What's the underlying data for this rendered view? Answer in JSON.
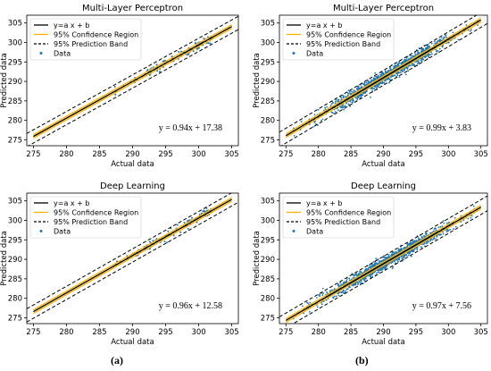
{
  "chart_data": [
    {
      "type": "scatter",
      "title": "Multi-Layer Perceptron",
      "xlabel": "Actual data",
      "ylabel": "Predicted data",
      "xlim": [
        274,
        306
      ],
      "ylim": [
        273.5,
        307
      ],
      "xticks": [
        275,
        280,
        285,
        290,
        295,
        300,
        305
      ],
      "yticks": [
        275,
        280,
        285,
        290,
        295,
        300,
        305
      ],
      "legend": [
        "y=a x + b",
        "95% Confidence Region",
        "95% Prediction Band",
        "Data"
      ],
      "legend_position": "top-left",
      "fit": {
        "slope": 0.94,
        "intercept": 17.38
      },
      "band_halfwidth": 1.7,
      "equation": "y = 0.94x + 17.38",
      "data_x_range": [
        287,
        302
      ],
      "data_density": "sparse"
    },
    {
      "type": "scatter",
      "title": "Multi-Layer Perceptron",
      "xlabel": "Actual data",
      "ylabel": "Predicted data",
      "xlim": [
        274,
        306
      ],
      "ylim": [
        273.5,
        307
      ],
      "xticks": [
        275,
        280,
        285,
        290,
        295,
        300,
        305
      ],
      "yticks": [
        275,
        280,
        285,
        290,
        295,
        300,
        305
      ],
      "legend": [
        "y=a x + b",
        "95% Confidence Region",
        "95% Prediction Band",
        "Data"
      ],
      "legend_position": "top-left",
      "fit": {
        "slope": 0.99,
        "intercept": 3.83
      },
      "band_halfwidth": 1.9,
      "equation": "y = 0.99x + 3.83",
      "data_x_range": [
        276,
        305
      ],
      "data_density": "dense"
    },
    {
      "type": "scatter",
      "title": "Deep Learning",
      "xlabel": "Actual data",
      "ylabel": "Predicted data",
      "xlim": [
        274,
        306
      ],
      "ylim": [
        273.5,
        307
      ],
      "xticks": [
        275,
        280,
        285,
        290,
        295,
        300,
        305
      ],
      "yticks": [
        275,
        280,
        285,
        290,
        295,
        300,
        305
      ],
      "legend": [
        "y=a x + b",
        "95% Confidence Region",
        "95% Prediction Band",
        "Data"
      ],
      "legend_position": "top-left",
      "fit": {
        "slope": 0.96,
        "intercept": 12.58
      },
      "band_halfwidth": 1.7,
      "equation": "y = 0.96x + 12.58",
      "data_x_range": [
        287,
        302
      ],
      "data_density": "sparse"
    },
    {
      "type": "scatter",
      "title": "Deep Learning",
      "xlabel": "Actual data",
      "ylabel": "Predicted data",
      "xlim": [
        274,
        306
      ],
      "ylim": [
        273.5,
        307
      ],
      "xticks": [
        275,
        280,
        285,
        290,
        295,
        300,
        305
      ],
      "yticks": [
        275,
        280,
        285,
        290,
        295,
        300,
        305
      ],
      "legend": [
        "y=a x + b",
        "95% Confidence Region",
        "95% Prediction Band",
        "Data"
      ],
      "legend_position": "top-left",
      "fit": {
        "slope": 0.97,
        "intercept": 7.56
      },
      "band_halfwidth": 1.9,
      "equation": "y = 0.97x + 7.56",
      "data_x_range": [
        276,
        305
      ],
      "data_density": "dense"
    }
  ],
  "colors": {
    "fit_line": "#000000",
    "confidence": "#ffb000",
    "prediction_band": "#000000",
    "data": "#1f77b4"
  },
  "captions": [
    "(a)",
    "(b)"
  ]
}
